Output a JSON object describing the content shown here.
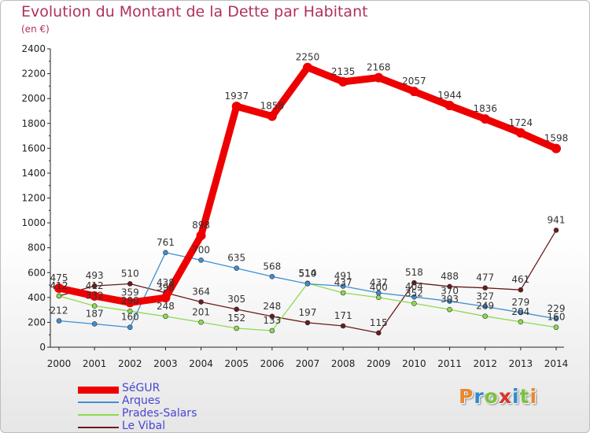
{
  "header": {
    "title": "Evolution du Montant de la Dette par Habitant",
    "subtitle": "(en €)"
  },
  "logo": {
    "text": "Proxiti",
    "colors": [
      "#e8892b",
      "#2e8bcf",
      "#7cc142",
      "#d9342b",
      "#2e8bcf",
      "#7cc142",
      "#e8892b"
    ]
  },
  "chart_data": {
    "type": "line",
    "title": "Evolution du Montant de la Dette par Habitant",
    "subtitle": "(en €)",
    "xlabel": "",
    "ylabel": "",
    "ylim": [
      0,
      2400
    ],
    "yticks": [
      0,
      200,
      400,
      600,
      800,
      1000,
      1200,
      1400,
      1600,
      1800,
      2000,
      2200,
      2400
    ],
    "grid": false,
    "legend": "bottom-left",
    "categories": [
      "2000",
      "2001",
      "2002",
      "2003",
      "2004",
      "2005",
      "2006",
      "2007",
      "2008",
      "2009",
      "2010",
      "2011",
      "2012",
      "2013",
      "2014"
    ],
    "series": [
      {
        "name": "SéGUR",
        "color": "#ee0000",
        "values": [
          475,
          412,
          359,
          398,
          898,
          1937,
          1858,
          2250,
          2135,
          2168,
          2057,
          1944,
          1836,
          1724,
          1598
        ]
      },
      {
        "name": "Arques",
        "color": "#3f8fd2",
        "values": [
          212,
          187,
          160,
          761,
          700,
          635,
          568,
          510,
          491,
          437,
          404,
          370,
          327,
          279,
          229
        ]
      },
      {
        "name": "Prades-Salars",
        "color": "#8ddb4f",
        "values": [
          412,
          332,
          290,
          248,
          201,
          152,
          133,
          514,
          437,
          400,
          352,
          303,
          249,
          204,
          160
        ]
      },
      {
        "name": "Le Vibal",
        "color": "#6b1a1a",
        "values": [
          412,
          493,
          510,
          438,
          364,
          305,
          248,
          197,
          171,
          115,
          518,
          488,
          477,
          461,
          941
        ]
      }
    ],
    "data_labels": {
      "SéGUR": [
        "475",
        "412",
        "359",
        "398",
        "898",
        "1937",
        "1858",
        "2250",
        "2135",
        "2168",
        "2057",
        "1944",
        "1836",
        "1724",
        "1598"
      ],
      "Arques": [
        "212",
        "187",
        "160",
        "761",
        "700",
        "635",
        "568",
        "510",
        "491",
        "437",
        "404",
        "370",
        "327",
        "279",
        "229"
      ],
      "Prades-Salars": [
        "412",
        "332",
        "290",
        "248",
        "201",
        "152",
        "133",
        "514",
        "437",
        "400",
        "352",
        "303",
        "249",
        "204",
        "160"
      ],
      "Le Vibal": [
        "412",
        "493",
        "510",
        "438",
        "364",
        "305",
        "248",
        "197",
        "171",
        "115",
        "518",
        "488",
        "477",
        "461",
        "941"
      ]
    }
  }
}
